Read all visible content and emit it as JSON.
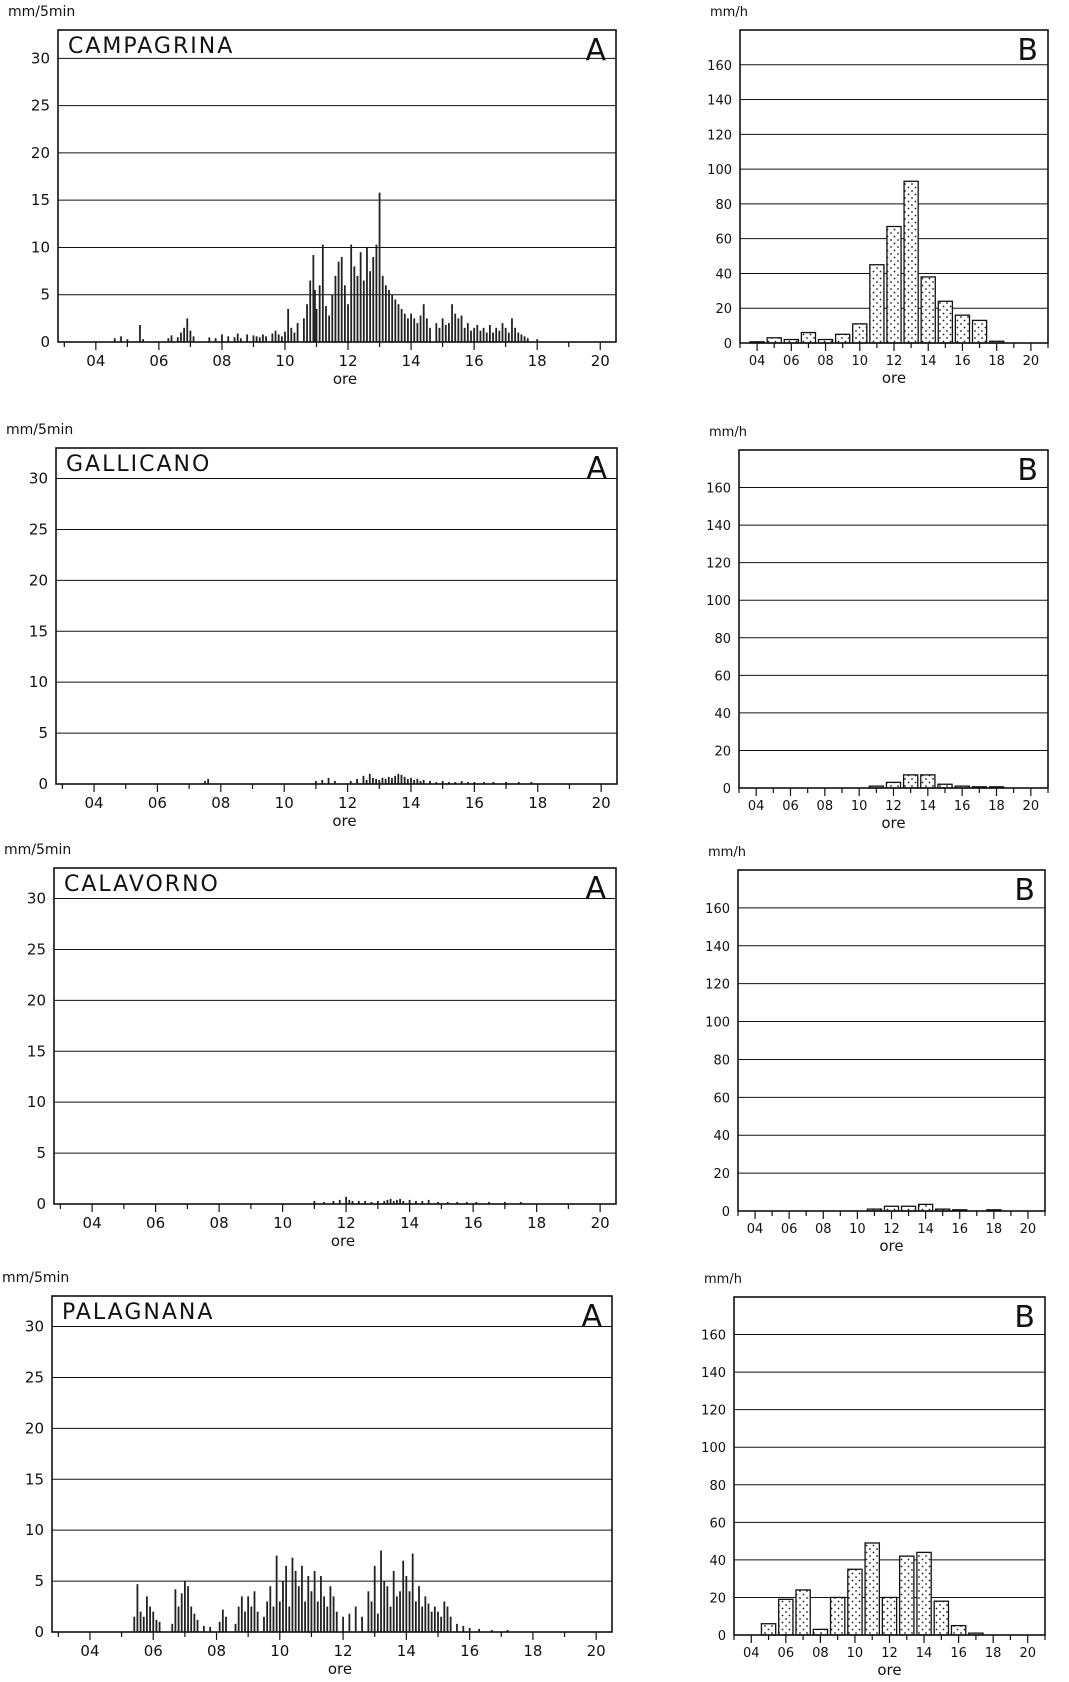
{
  "axes": {
    "a_unit": "mm/5min",
    "b_unit": "mm/h",
    "x_label": "ore",
    "x_ticks": [
      "04",
      "06",
      "08",
      "10",
      "12",
      "14",
      "16",
      "18",
      "20"
    ],
    "a_y_ticks": [
      "0",
      "5",
      "10",
      "15",
      "20",
      "25",
      "30"
    ],
    "b_y_ticks": [
      "0",
      "20",
      "40",
      "60",
      "80",
      "100",
      "120",
      "140",
      "160"
    ]
  },
  "chart_data": [
    {
      "id": "campagrina-a",
      "type": "bar",
      "station": "CAMPAGRINA",
      "panel": "A",
      "x_unit": "hour",
      "xlim": [
        2.8,
        20.5
      ],
      "ylim": [
        0,
        33
      ],
      "ylabel": "mm/5min",
      "xlabel": "ore",
      "x": [
        4.6,
        4.8,
        5.0,
        5.4,
        5.5,
        6.3,
        6.4,
        6.6,
        6.7,
        6.8,
        6.9,
        7.0,
        7.1,
        7.6,
        7.8,
        8.0,
        8.2,
        8.4,
        8.5,
        8.6,
        8.8,
        9.0,
        9.1,
        9.2,
        9.3,
        9.4,
        9.6,
        9.7,
        9.8,
        9.9,
        10.0,
        10.1,
        10.2,
        10.3,
        10.4,
        10.6,
        10.7,
        10.8,
        10.9,
        10.95,
        11.0,
        11.1,
        11.2,
        11.3,
        11.4,
        11.5,
        11.6,
        11.7,
        11.8,
        11.9,
        12.0,
        12.1,
        12.2,
        12.3,
        12.4,
        12.5,
        12.6,
        12.7,
        12.8,
        12.9,
        13.0,
        13.1,
        13.2,
        13.3,
        13.4,
        13.5,
        13.6,
        13.7,
        13.8,
        13.9,
        14.0,
        14.1,
        14.2,
        14.3,
        14.4,
        14.5,
        14.6,
        14.8,
        14.9,
        15.0,
        15.1,
        15.2,
        15.3,
        15.4,
        15.5,
        15.6,
        15.7,
        15.8,
        15.9,
        16.0,
        16.1,
        16.2,
        16.3,
        16.4,
        16.5,
        16.6,
        16.7,
        16.8,
        16.9,
        17.0,
        17.1,
        17.2,
        17.3,
        17.4,
        17.5,
        17.6,
        17.7,
        18.0
      ],
      "values": [
        0.4,
        0.6,
        0.3,
        1.8,
        0.3,
        0.4,
        0.7,
        0.5,
        1.0,
        1.5,
        2.5,
        1.2,
        0.6,
        0.5,
        0.4,
        0.8,
        0.6,
        0.5,
        0.9,
        0.4,
        0.8,
        0.7,
        0.6,
        0.5,
        0.8,
        0.6,
        0.9,
        1.2,
        0.8,
        0.6,
        1.1,
        3.5,
        1.5,
        1.0,
        2.0,
        2.5,
        4.0,
        6.5,
        9.2,
        5.5,
        3.5,
        6.0,
        10.3,
        3.8,
        2.8,
        5.0,
        7.0,
        8.5,
        9.0,
        6.0,
        4.0,
        10.3,
        8.0,
        7.0,
        9.5,
        6.5,
        10.0,
        7.5,
        9.0,
        10.3,
        15.8,
        7.0,
        6.0,
        5.5,
        5.0,
        4.5,
        4.0,
        3.5,
        3.0,
        2.5,
        3.0,
        2.5,
        2.0,
        2.8,
        4.0,
        2.5,
        1.5,
        2.0,
        1.5,
        2.5,
        1.8,
        2.0,
        4.0,
        3.0,
        2.5,
        2.8,
        1.5,
        2.0,
        1.2,
        1.5,
        1.8,
        1.2,
        1.5,
        1.0,
        1.8,
        1.0,
        1.5,
        1.2,
        2.0,
        1.5,
        1.0,
        2.5,
        1.5,
        1.0,
        0.8,
        0.6,
        0.4,
        0.3
      ]
    },
    {
      "id": "campagrina-b",
      "type": "bar",
      "station": "CAMPAGRINA",
      "panel": "B",
      "x_unit": "hour",
      "xlim": [
        3,
        21
      ],
      "ylim": [
        0,
        180
      ],
      "ylabel": "mm/h",
      "xlabel": "ore",
      "x": [
        4,
        5,
        6,
        7,
        8,
        9,
        10,
        11,
        12,
        13,
        14,
        15,
        16,
        17,
        18
      ],
      "values": [
        0,
        3,
        2,
        6,
        2,
        5,
        11,
        45,
        67,
        93,
        38,
        24,
        16,
        13,
        1
      ]
    },
    {
      "id": "gallicano-a",
      "type": "bar",
      "station": "GALLICANO",
      "panel": "A",
      "x_unit": "hour",
      "xlim": [
        2.8,
        20.5
      ],
      "ylim": [
        0,
        33
      ],
      "ylabel": "mm/5min",
      "xlabel": "ore",
      "x": [
        7.5,
        7.6,
        11.0,
        11.2,
        11.4,
        11.6,
        12.1,
        12.3,
        12.5,
        12.6,
        12.7,
        12.8,
        12.9,
        13.0,
        13.1,
        13.2,
        13.3,
        13.4,
        13.5,
        13.6,
        13.7,
        13.8,
        13.9,
        14.0,
        14.1,
        14.2,
        14.3,
        14.4,
        14.6,
        14.8,
        15.0,
        15.2,
        15.4,
        15.6,
        15.8,
        16.0,
        16.3,
        16.6,
        17.0,
        17.4,
        17.8
      ],
      "values": [
        0.3,
        0.5,
        0.3,
        0.4,
        0.6,
        0.3,
        0.3,
        0.5,
        0.8,
        0.4,
        1.0,
        0.6,
        0.5,
        0.4,
        0.6,
        0.5,
        0.7,
        0.6,
        0.8,
        1.0,
        0.9,
        0.7,
        0.5,
        0.6,
        0.4,
        0.5,
        0.3,
        0.4,
        0.3,
        0.2,
        0.3,
        0.2,
        0.2,
        0.3,
        0.2,
        0.2,
        0.2,
        0.2,
        0.2,
        0.2,
        0.2
      ]
    },
    {
      "id": "gallicano-b",
      "type": "bar",
      "station": "GALLICANO",
      "panel": "B",
      "x_unit": "hour",
      "xlim": [
        3,
        21
      ],
      "ylim": [
        0,
        180
      ],
      "ylabel": "mm/h",
      "xlabel": "ore",
      "x": [
        11,
        12,
        13,
        14,
        15,
        16,
        17,
        18
      ],
      "values": [
        1,
        3,
        7,
        7,
        2,
        1,
        0.5,
        0.5
      ]
    },
    {
      "id": "calavorno-a",
      "type": "bar",
      "station": "CALAVORNO",
      "panel": "A",
      "x_unit": "hour",
      "xlim": [
        2.8,
        20.5
      ],
      "ylim": [
        0,
        33
      ],
      "ylabel": "mm/5min",
      "xlabel": "ore",
      "x": [
        11.0,
        11.3,
        11.6,
        11.8,
        12.0,
        12.1,
        12.2,
        12.4,
        12.6,
        12.8,
        13.0,
        13.2,
        13.3,
        13.4,
        13.5,
        13.6,
        13.7,
        13.8,
        14.0,
        14.2,
        14.4,
        14.6,
        14.9,
        15.2,
        15.5,
        15.8,
        16.1,
        16.5,
        17.0,
        17.5
      ],
      "values": [
        0.3,
        0.2,
        0.3,
        0.4,
        0.7,
        0.4,
        0.3,
        0.3,
        0.3,
        0.2,
        0.3,
        0.3,
        0.4,
        0.5,
        0.3,
        0.4,
        0.5,
        0.3,
        0.4,
        0.3,
        0.3,
        0.4,
        0.2,
        0.2,
        0.2,
        0.2,
        0.2,
        0.2,
        0.2,
        0.2
      ]
    },
    {
      "id": "calavorno-b",
      "type": "bar",
      "station": "CALAVORNO",
      "panel": "B",
      "x_unit": "hour",
      "xlim": [
        3,
        21
      ],
      "ylim": [
        0,
        180
      ],
      "ylabel": "mm/h",
      "xlabel": "ore",
      "x": [
        11,
        12,
        13,
        14,
        15,
        16,
        18
      ],
      "values": [
        1,
        2.5,
        2.5,
        3.5,
        1,
        0.5,
        0.5
      ]
    },
    {
      "id": "palagnana-a",
      "type": "bar",
      "station": "PALAGNANA",
      "panel": "A",
      "x_unit": "hour",
      "xlim": [
        2.8,
        20.5
      ],
      "ylim": [
        0,
        33
      ],
      "ylabel": "mm/5min",
      "xlabel": "ore",
      "x": [
        5.4,
        5.5,
        5.6,
        5.7,
        5.8,
        5.9,
        6.0,
        6.1,
        6.2,
        6.6,
        6.7,
        6.8,
        6.9,
        7.0,
        7.1,
        7.2,
        7.3,
        7.4,
        7.6,
        7.8,
        8.1,
        8.2,
        8.3,
        8.6,
        8.7,
        8.8,
        8.9,
        9.0,
        9.1,
        9.2,
        9.3,
        9.5,
        9.6,
        9.7,
        9.8,
        9.9,
        10.0,
        10.1,
        10.2,
        10.3,
        10.4,
        10.5,
        10.6,
        10.7,
        10.8,
        10.9,
        11.0,
        11.1,
        11.2,
        11.3,
        11.4,
        11.5,
        11.6,
        11.7,
        11.8,
        12.0,
        12.2,
        12.4,
        12.6,
        12.8,
        12.9,
        13.0,
        13.1,
        13.2,
        13.3,
        13.4,
        13.5,
        13.6,
        13.7,
        13.8,
        13.9,
        14.0,
        14.1,
        14.2,
        14.3,
        14.4,
        14.5,
        14.6,
        14.7,
        14.8,
        14.9,
        15.0,
        15.1,
        15.2,
        15.3,
        15.4,
        15.6,
        15.8,
        16.0,
        16.3,
        16.7,
        17.2
      ],
      "values": [
        1.5,
        4.7,
        2.0,
        1.5,
        3.5,
        2.5,
        2.0,
        1.2,
        1.0,
        0.8,
        4.2,
        2.5,
        3.8,
        5.0,
        4.5,
        2.5,
        1.8,
        1.2,
        0.6,
        0.5,
        1.0,
        2.2,
        1.5,
        0.8,
        2.5,
        3.5,
        2.0,
        3.5,
        2.5,
        4.0,
        2.0,
        1.5,
        3.0,
        4.5,
        2.5,
        7.5,
        3.0,
        5.0,
        6.5,
        2.5,
        7.3,
        6.0,
        4.5,
        6.5,
        3.0,
        5.5,
        4.0,
        6.0,
        3.0,
        5.5,
        3.5,
        2.5,
        4.5,
        3.5,
        2.0,
        1.5,
        1.8,
        2.5,
        1.5,
        4.0,
        3.0,
        6.5,
        1.8,
        8.0,
        5.0,
        4.5,
        2.5,
        6.0,
        3.5,
        4.0,
        7.0,
        5.5,
        4.0,
        7.7,
        3.0,
        4.5,
        2.5,
        3.5,
        2.8,
        2.0,
        2.5,
        2.0,
        1.5,
        3.0,
        2.5,
        1.5,
        0.8,
        0.6,
        0.4,
        0.3,
        0.2,
        0.2
      ]
    },
    {
      "id": "palagnana-b",
      "type": "bar",
      "station": "PALAGNANA",
      "panel": "B",
      "x_unit": "hour",
      "xlim": [
        3,
        21
      ],
      "ylim": [
        0,
        180
      ],
      "ylabel": "mm/h",
      "xlabel": "ore",
      "x": [
        5,
        6,
        7,
        8,
        9,
        10,
        11,
        12,
        13,
        14,
        15,
        16,
        17
      ],
      "values": [
        6,
        19,
        24,
        3,
        20,
        35,
        49,
        20,
        42,
        44,
        18,
        5,
        1
      ]
    }
  ]
}
